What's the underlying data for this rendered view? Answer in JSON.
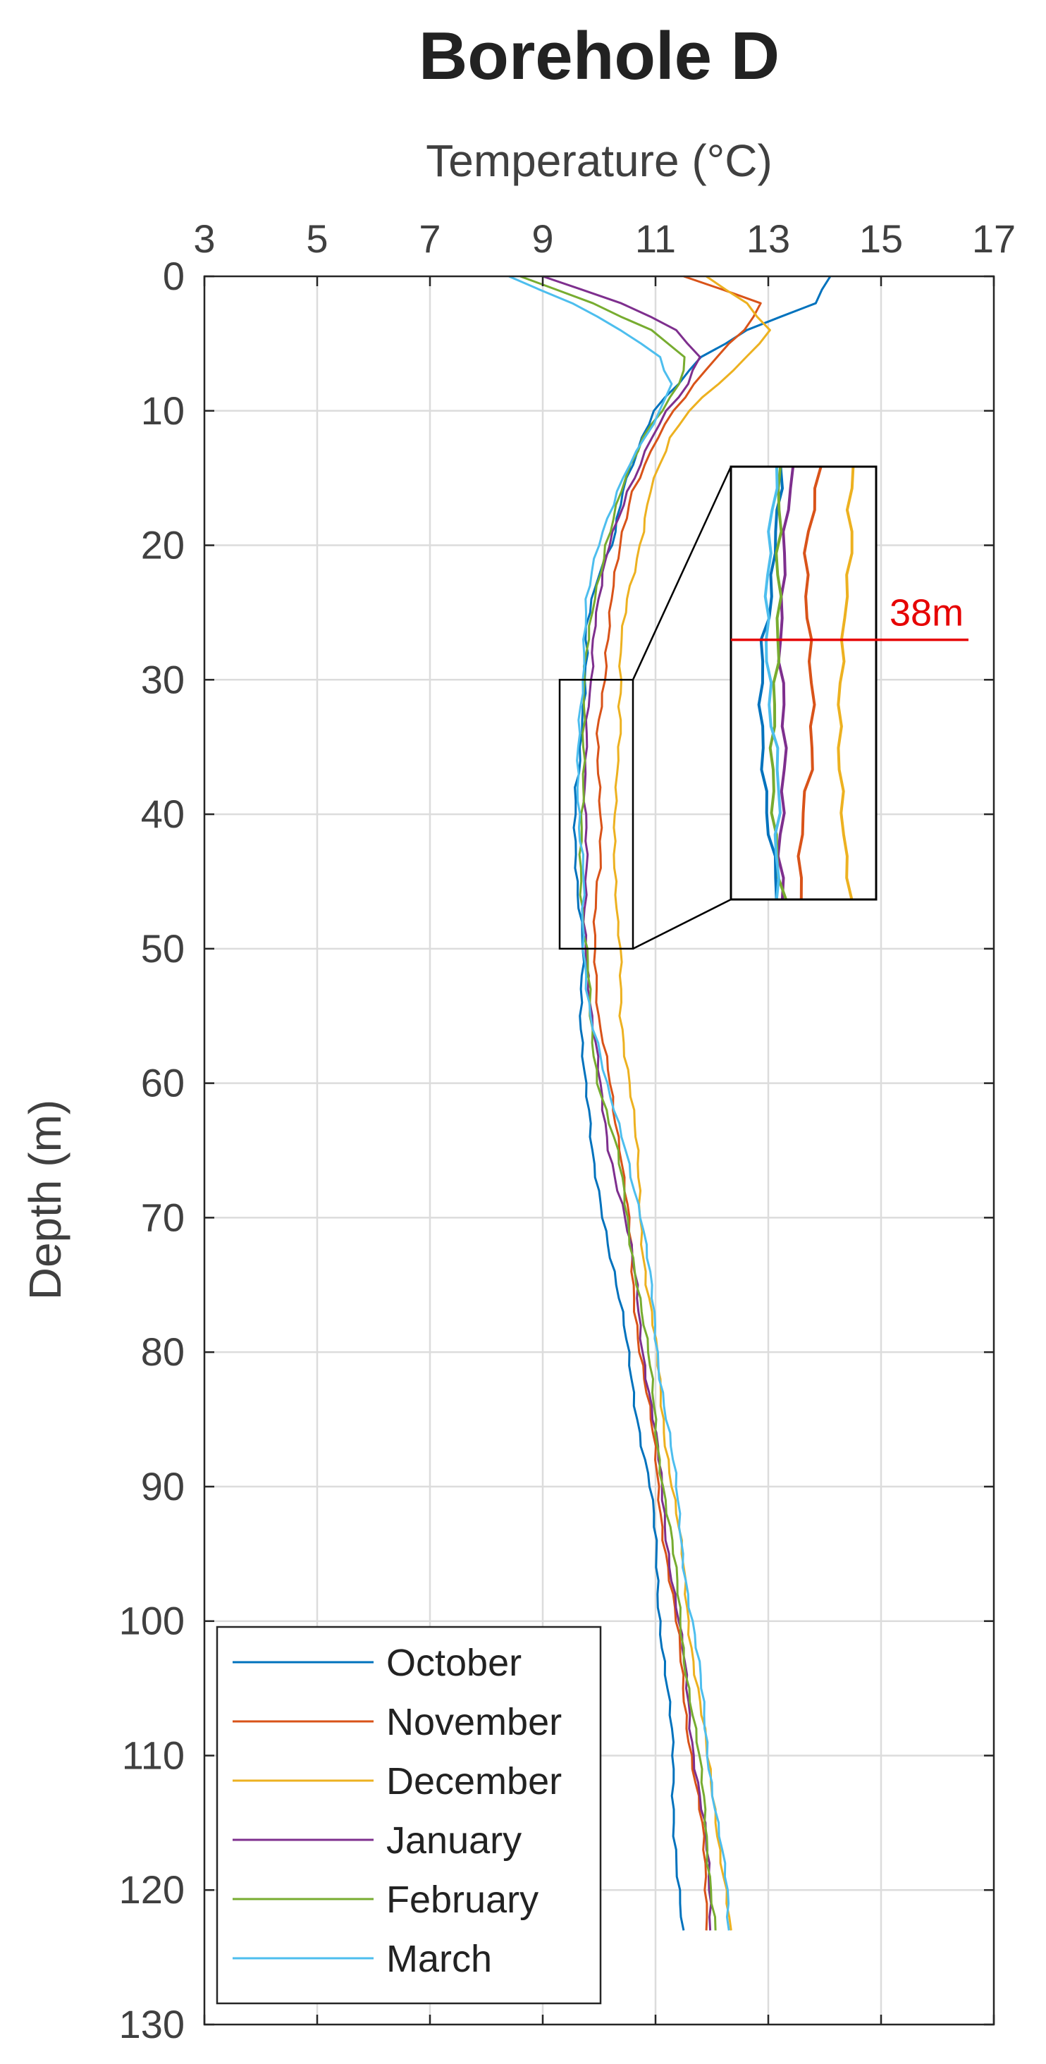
{
  "chart_data": {
    "type": "line",
    "title": "Borehole D",
    "xlabel": "Temperature (°C)",
    "ylabel": "Depth (m)",
    "xlim": [
      3,
      17
    ],
    "ylim": [
      0,
      130
    ],
    "x_axis_position": "top",
    "y_axis_direction": "reversed",
    "xticks": [
      "3",
      "5",
      "7",
      "9",
      "11",
      "13",
      "15",
      "17"
    ],
    "yticks": [
      "0",
      "10",
      "20",
      "30",
      "40",
      "50",
      "60",
      "70",
      "80",
      "90",
      "100",
      "110",
      "120",
      "130"
    ],
    "grid": true,
    "legend_position": "bottom-left",
    "depth": [
      0,
      2,
      4,
      6,
      8,
      10,
      12,
      14,
      16,
      18,
      20,
      22,
      24,
      26,
      28,
      30,
      32,
      34,
      36,
      38,
      40,
      42,
      44,
      46,
      48,
      50,
      55,
      60,
      65,
      70,
      75,
      80,
      85,
      90,
      95,
      100,
      105,
      110,
      115,
      120,
      123
    ],
    "series": [
      {
        "name": "October",
        "color": "#0072bd",
        "values": [
          14.1,
          13.8,
          12.6,
          11.8,
          11.4,
          11.0,
          10.8,
          10.6,
          10.4,
          10.3,
          10.2,
          10.0,
          9.9,
          9.8,
          9.8,
          9.75,
          9.7,
          9.65,
          9.65,
          9.6,
          9.6,
          9.6,
          9.6,
          9.6,
          9.65,
          9.7,
          9.7,
          9.75,
          9.85,
          10.1,
          10.3,
          10.5,
          10.7,
          10.9,
          11.0,
          11.1,
          11.2,
          11.3,
          11.35,
          11.4,
          11.45
        ]
      },
      {
        "name": "November",
        "color": "#d95319",
        "values": [
          11.5,
          12.9,
          12.6,
          12.1,
          11.7,
          11.3,
          11.0,
          10.8,
          10.6,
          10.5,
          10.4,
          10.3,
          10.2,
          10.15,
          10.1,
          10.1,
          10.05,
          10.0,
          10.0,
          10.0,
          10.0,
          10.0,
          10.0,
          9.95,
          9.95,
          9.95,
          9.95,
          10.2,
          10.4,
          10.5,
          10.6,
          10.75,
          10.9,
          11.05,
          11.2,
          11.35,
          11.5,
          11.65,
          11.8,
          11.9,
          11.95
        ]
      },
      {
        "name": "December",
        "color": "#edb120",
        "values": [
          11.9,
          12.6,
          13.0,
          12.6,
          12.1,
          11.6,
          11.3,
          11.1,
          10.9,
          10.8,
          10.7,
          10.6,
          10.5,
          10.45,
          10.4,
          10.4,
          10.35,
          10.35,
          10.3,
          10.3,
          10.3,
          10.3,
          10.3,
          10.3,
          10.3,
          10.35,
          10.4,
          10.55,
          10.65,
          10.75,
          10.85,
          11.0,
          11.15,
          11.3,
          11.45,
          11.6,
          11.75,
          11.9,
          12.1,
          12.25,
          12.3
        ]
      },
      {
        "name": "January",
        "color": "#7e2f8e",
        "values": [
          9.0,
          10.4,
          11.4,
          11.8,
          11.6,
          11.2,
          10.9,
          10.7,
          10.5,
          10.35,
          10.2,
          10.1,
          10.0,
          9.9,
          9.85,
          9.85,
          9.8,
          9.8,
          9.8,
          9.75,
          9.75,
          9.75,
          9.75,
          9.75,
          9.75,
          9.8,
          9.85,
          10.0,
          10.2,
          10.45,
          10.65,
          10.8,
          10.95,
          11.1,
          11.25,
          11.4,
          11.55,
          11.7,
          11.85,
          11.95,
          12.0
        ]
      },
      {
        "name": "February",
        "color": "#77ac30",
        "values": [
          8.6,
          9.9,
          10.9,
          11.5,
          11.4,
          11.1,
          10.8,
          10.6,
          10.4,
          10.25,
          10.1,
          10.0,
          9.9,
          9.85,
          9.8,
          9.75,
          9.75,
          9.7,
          9.7,
          9.7,
          9.7,
          9.7,
          9.7,
          9.7,
          9.7,
          9.75,
          9.85,
          10.0,
          10.3,
          10.5,
          10.7,
          10.85,
          11.0,
          11.15,
          11.3,
          11.45,
          11.6,
          11.75,
          11.9,
          12.0,
          12.05
        ]
      },
      {
        "name": "March",
        "color": "#4dbeee",
        "values": [
          8.4,
          9.5,
          10.4,
          11.1,
          11.3,
          11.1,
          10.8,
          10.5,
          10.3,
          10.15,
          10.0,
          9.9,
          9.8,
          9.75,
          9.7,
          9.7,
          9.65,
          9.65,
          9.65,
          9.65,
          9.65,
          9.65,
          9.7,
          9.7,
          9.7,
          9.75,
          9.85,
          10.1,
          10.5,
          10.75,
          10.9,
          11.05,
          11.2,
          11.35,
          11.5,
          11.65,
          11.8,
          11.95,
          12.1,
          12.25,
          12.3
        ]
      }
    ],
    "annotations": {
      "zoom_region": {
        "depth_range": [
          30,
          50
        ],
        "temp_range": [
          9.3,
          10.6
        ]
      },
      "depth_marker": {
        "label": "38m",
        "depth": 38,
        "color": "#e60000"
      }
    }
  }
}
